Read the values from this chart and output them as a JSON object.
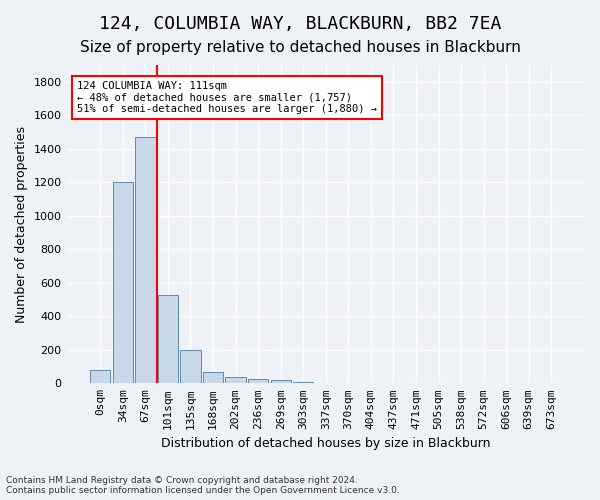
{
  "title": "124, COLUMBIA WAY, BLACKBURN, BB2 7EA",
  "subtitle": "Size of property relative to detached houses in Blackburn",
  "xlabel": "Distribution of detached houses by size in Blackburn",
  "ylabel": "Number of detached properties",
  "footer_line1": "Contains HM Land Registry data © Crown copyright and database right 2024.",
  "footer_line2": "Contains public sector information licensed under the Open Government Licence v3.0.",
  "bin_labels": [
    "0sqm",
    "34sqm",
    "67sqm",
    "101sqm",
    "135sqm",
    "168sqm",
    "202sqm",
    "236sqm",
    "269sqm",
    "303sqm",
    "337sqm",
    "370sqm",
    "404sqm",
    "437sqm",
    "471sqm",
    "505sqm",
    "538sqm",
    "572sqm",
    "606sqm",
    "639sqm",
    "673sqm"
  ],
  "bar_values": [
    80,
    1200,
    1470,
    530,
    200,
    65,
    35,
    25,
    20,
    5,
    0,
    0,
    0,
    0,
    0,
    0,
    0,
    0,
    0,
    0,
    0
  ],
  "bar_color": "#c8d8e8",
  "bar_edge_color": "#5a8ab0",
  "vline_x": 2.5,
  "vline_color": "red",
  "annotation_text": "124 COLUMBIA WAY: 111sqm\n← 48% of detached houses are smaller (1,757)\n51% of semi-detached houses are larger (1,880) →",
  "annotation_box_color": "white",
  "annotation_box_edge": "red",
  "ylim": [
    0,
    1900
  ],
  "yticks": [
    0,
    200,
    400,
    600,
    800,
    1000,
    1200,
    1400,
    1600,
    1800
  ],
  "bg_color": "#eef2f7",
  "grid_color": "white",
  "title_fontsize": 13,
  "subtitle_fontsize": 11,
  "axis_label_fontsize": 9,
  "tick_fontsize": 8
}
